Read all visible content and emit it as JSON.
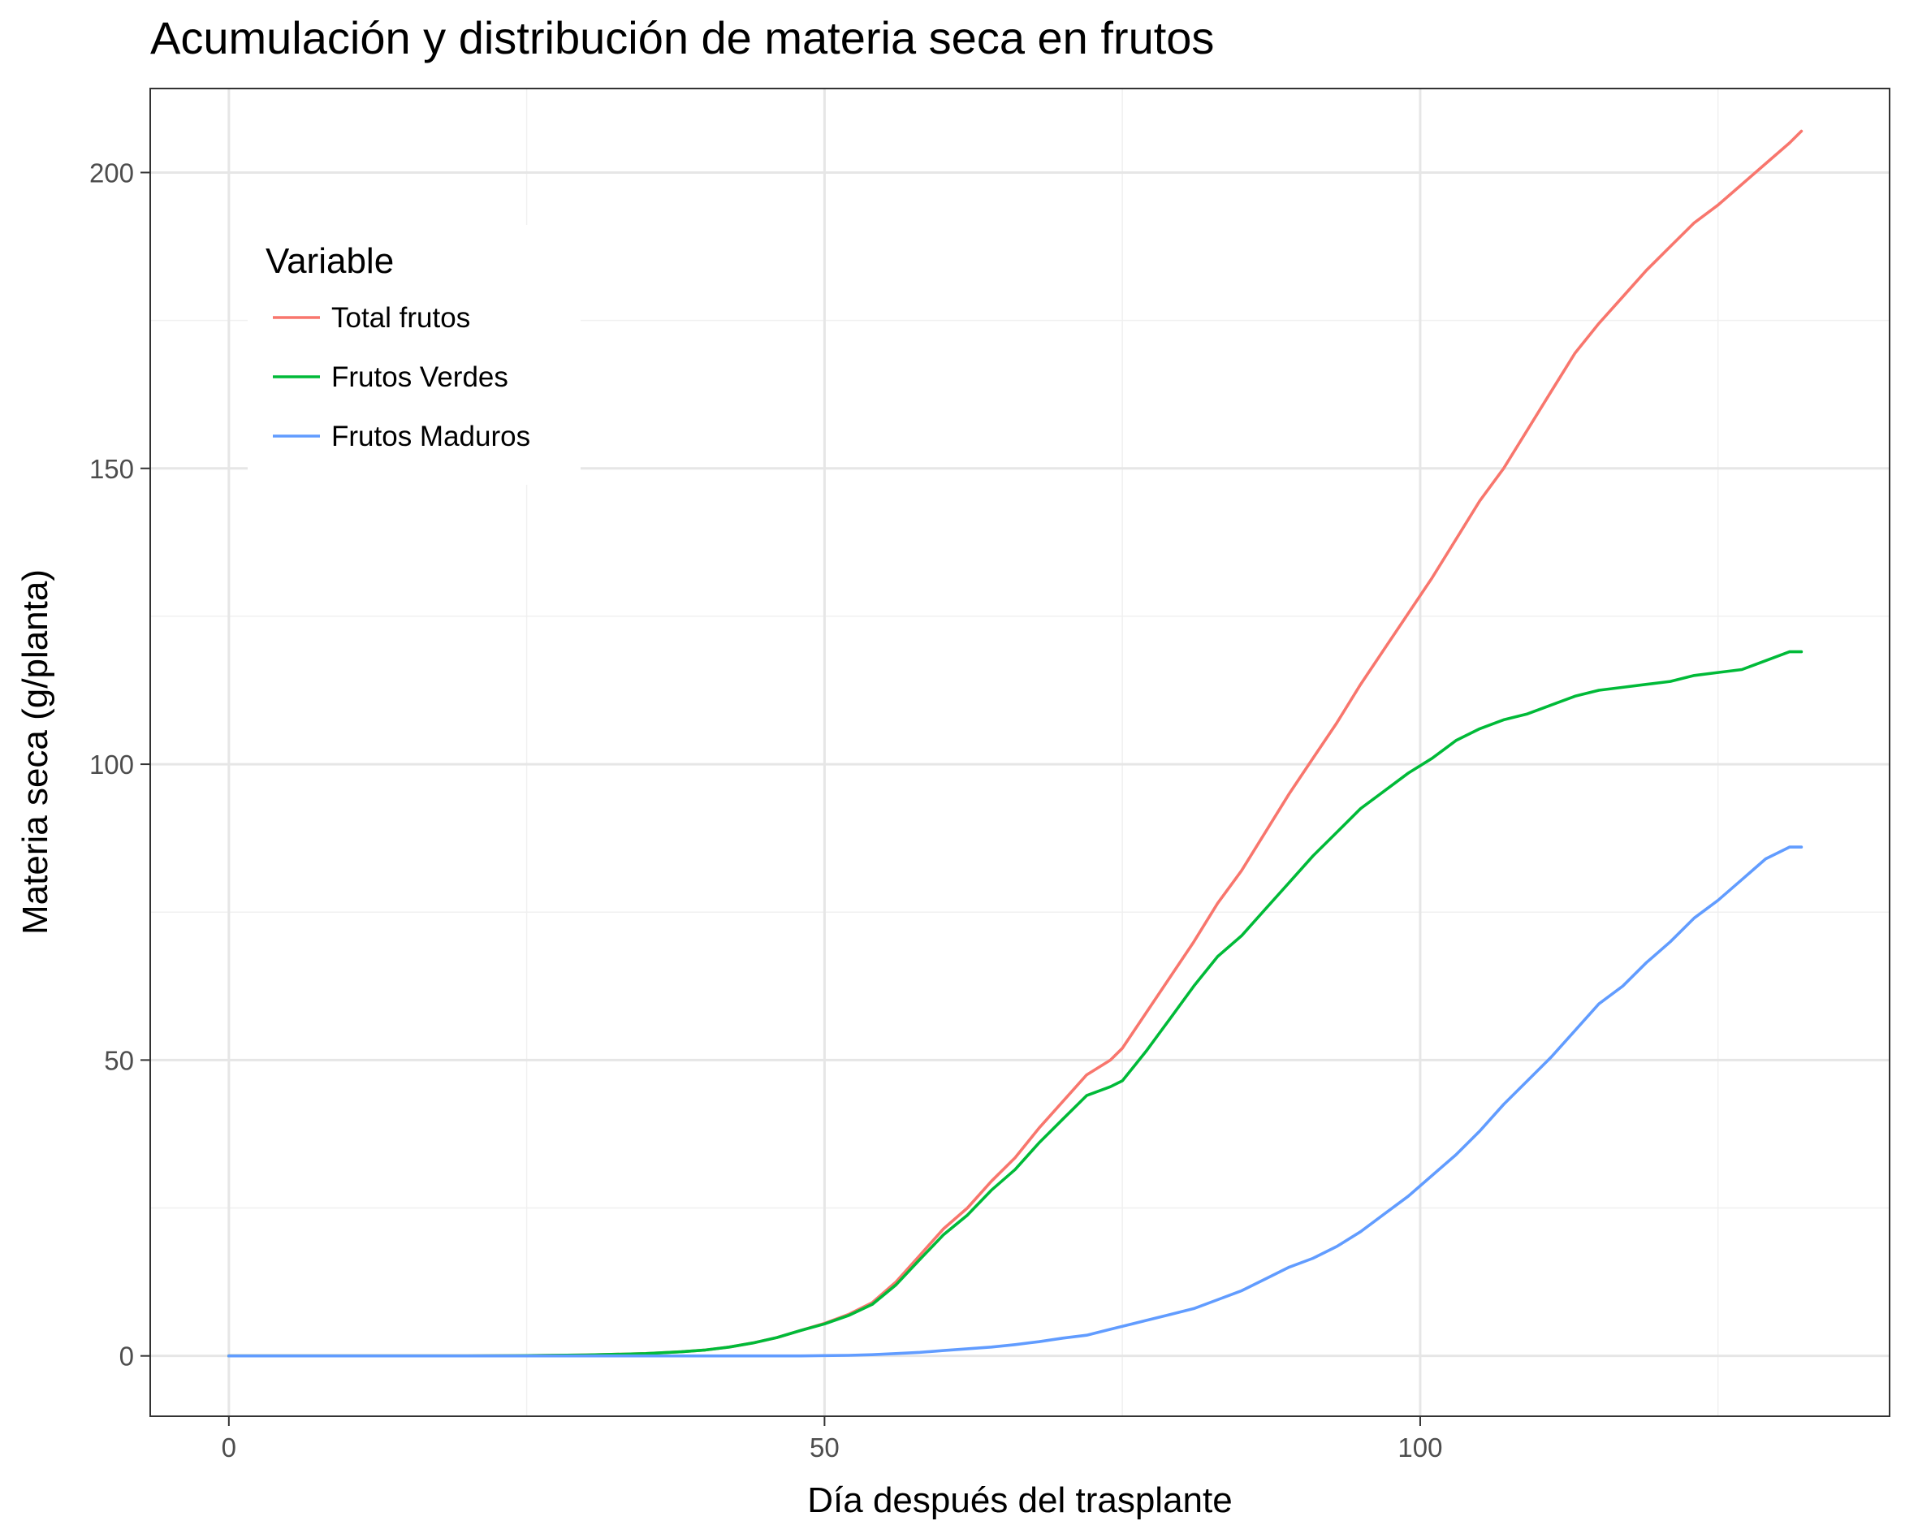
{
  "chart_data": {
    "type": "line",
    "title": "Acumulación y distribución de materia seca en frutos",
    "xlabel": "Día después del trasplante",
    "ylabel": "Materia seca (g/planta)",
    "xlim": [
      -6.6,
      139.4
    ],
    "ylim": [
      -10.2,
      214.2
    ],
    "x_ticks": [
      0,
      50,
      100
    ],
    "y_ticks": [
      0,
      50,
      100,
      150,
      200
    ],
    "grid": true,
    "legend": {
      "title": "Variable",
      "position": "top-left"
    },
    "x": [
      0,
      5,
      10,
      15,
      20,
      25,
      30,
      35,
      38,
      40,
      42,
      44,
      46,
      48,
      50,
      52,
      54,
      56,
      58,
      60,
      62,
      64,
      66,
      68,
      70,
      72,
      74,
      75,
      77,
      79,
      81,
      83,
      85,
      87,
      89,
      91,
      93,
      95,
      97,
      99,
      101,
      103,
      105,
      107,
      109,
      111,
      113,
      115,
      117,
      119,
      121,
      123,
      125,
      127,
      129,
      131,
      132
    ],
    "series": [
      {
        "name": "Total frutos",
        "color": "#F8766D",
        "values": [
          0,
          0,
          0,
          0,
          0,
          0.05,
          0.15,
          0.4,
          0.7,
          1.0,
          1.5,
          2.2,
          3.1,
          4.3,
          5.5,
          7.0,
          9.0,
          12.5,
          17.0,
          21.5,
          25.0,
          29.5,
          33.5,
          38.5,
          43.0,
          47.5,
          50.0,
          52.0,
          58.0,
          64.0,
          70.0,
          76.5,
          82.0,
          88.5,
          95.0,
          101.0,
          107.0,
          113.5,
          119.5,
          125.5,
          131.5,
          138.0,
          144.5,
          150.0,
          156.5,
          163.0,
          169.5,
          174.5,
          179.0,
          183.5,
          187.5,
          191.5,
          194.5,
          198.0,
          201.5,
          205.0,
          207.0
        ]
      },
      {
        "name": "Frutos Verdes",
        "color": "#00BA38",
        "values": [
          0,
          0,
          0,
          0,
          0,
          0.05,
          0.15,
          0.4,
          0.7,
          1.0,
          1.5,
          2.2,
          3.1,
          4.3,
          5.4,
          6.8,
          8.7,
          12.0,
          16.3,
          20.5,
          23.8,
          28.0,
          31.5,
          36.0,
          40.0,
          44.0,
          45.5,
          46.5,
          51.5,
          57.0,
          62.5,
          67.5,
          71.0,
          75.5,
          80.0,
          84.5,
          88.5,
          92.5,
          95.5,
          98.5,
          101.0,
          104.0,
          106.0,
          107.5,
          108.5,
          110.0,
          111.5,
          112.5,
          113.0,
          113.5,
          114.0,
          115.0,
          115.5,
          116.0,
          117.5,
          119.0,
          119.0
        ]
      },
      {
        "name": "Frutos Maduros",
        "color": "#619CFF",
        "values": [
          0,
          0,
          0,
          0,
          0,
          0,
          0,
          0,
          0,
          0,
          0,
          0,
          0,
          0,
          0.05,
          0.1,
          0.2,
          0.4,
          0.6,
          0.9,
          1.2,
          1.5,
          1.9,
          2.4,
          3.0,
          3.5,
          4.5,
          5.0,
          6.0,
          7.0,
          8.0,
          9.5,
          11.0,
          13.0,
          15.0,
          16.5,
          18.5,
          21.0,
          24.0,
          27.0,
          30.5,
          34.0,
          38.0,
          42.5,
          46.5,
          50.5,
          55.0,
          59.5,
          62.5,
          66.5,
          70.0,
          74.0,
          77.0,
          80.5,
          84.0,
          86.0,
          86.0
        ]
      }
    ]
  }
}
